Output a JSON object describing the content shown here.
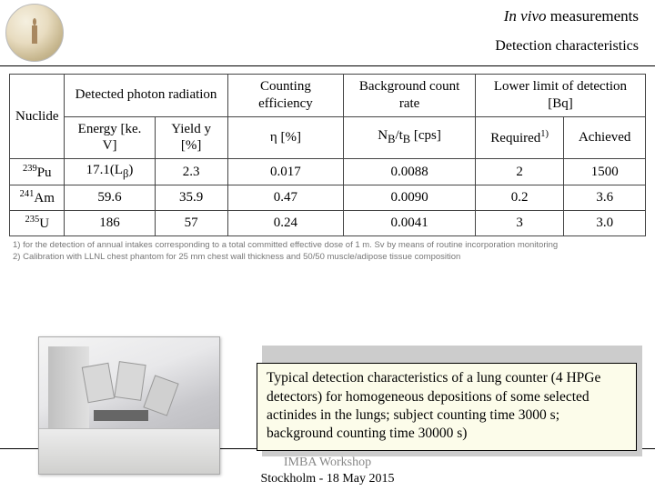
{
  "header": {
    "title_italic": "In vivo",
    "title_rest": " measurements",
    "subtitle": "Detection characteristics"
  },
  "table": {
    "columns": {
      "nuclide": "Nuclide",
      "detected": "Detected photon radiation",
      "energy": "Energy [ke. V]",
      "yield": "Yield y [%]",
      "counting": "Counting efficiency",
      "eta": "η [%]",
      "background": "Background count rate",
      "nb": "N_B/t_B [cps]",
      "lower": "Lower limit of detection [Bq]",
      "required": "Required",
      "req_sup": "1)",
      "achieved": "Achieved"
    },
    "rows": [
      {
        "nuclide_pre": "239",
        "nuclide_el": "Pu",
        "energy": "17.1(L",
        "energy_sub": "β",
        "energy_post": ")",
        "yield": "2.3",
        "eta": "0.017",
        "nb": "0.0088",
        "req": "2",
        "ach": "1500"
      },
      {
        "nuclide_pre": "241",
        "nuclide_el": "Am",
        "energy": "59.6",
        "energy_sub": "",
        "energy_post": "",
        "yield": "35.9",
        "eta": "0.47",
        "nb": "0.0090",
        "req": "0.2",
        "ach": "3.6"
      },
      {
        "nuclide_pre": "235",
        "nuclide_el": "U",
        "energy": "186",
        "energy_sub": "",
        "energy_post": "",
        "yield": "57",
        "eta": "0.24",
        "nb": "0.0041",
        "req": "3",
        "ach": "3.0"
      }
    ]
  },
  "footnotes": {
    "f1": "1)  for the detection of annual intakes corresponding to a total committed effective dose of 1 m. Sv by means of routine incorporation monitoring",
    "f2": "2)  Calibration with LLNL chest phantom for 25 mm chest wall thickness and 50/50 muscle/adipose tissue composition"
  },
  "callout": "Typical detection characteristics of a lung counter (4 HPGe detectors) for homogeneous depositions of some selected actinides in the lungs; subject counting time 3000 s; background counting time 30000 s)",
  "footer": {
    "line1": "IMBA Workshop",
    "line2": "Stockholm - 18 May 2015"
  }
}
